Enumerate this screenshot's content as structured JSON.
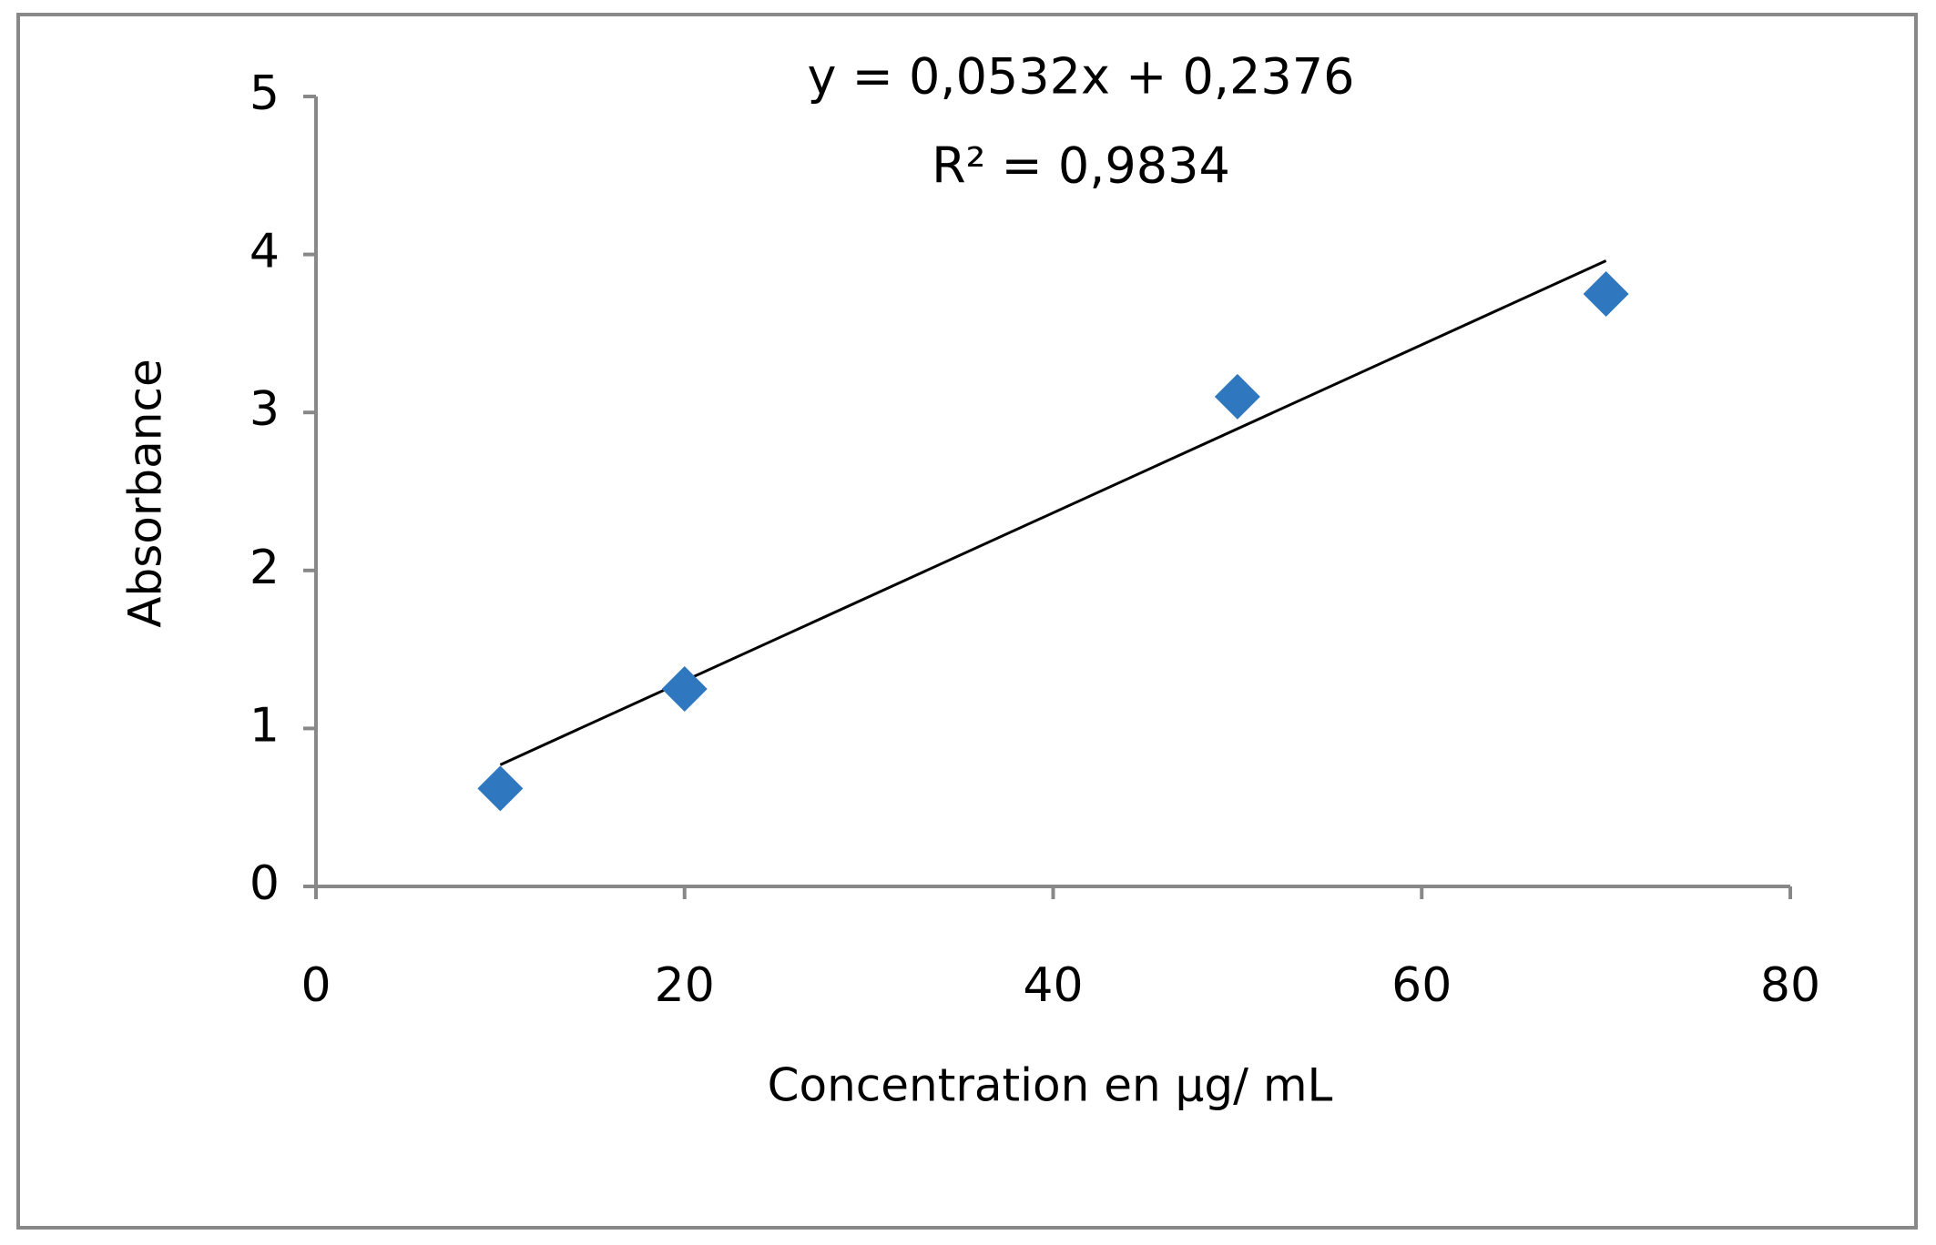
{
  "chart_data": {
    "type": "scatter",
    "annotations": [
      "y = 0,0532x + 0,2376",
      "R² = 0,9834"
    ],
    "xlabel": "Concentration en µg/ mL",
    "ylabel": "Absorbance",
    "x": [
      10,
      20,
      50,
      70
    ],
    "series": [
      {
        "color": "#2f78c0",
        "values": [
          0.62,
          1.25,
          3.1,
          3.75
        ]
      }
    ],
    "trendline": {
      "color": "#000000",
      "x": [
        10,
        70
      ],
      "values": [
        0.77,
        3.96
      ]
    },
    "xlim": [
      0,
      80
    ],
    "xticks": [
      0,
      20,
      40,
      60,
      80
    ],
    "ylim": [
      0,
      5
    ],
    "yticks": [
      0,
      1,
      2,
      3,
      4,
      5
    ],
    "grid": false
  }
}
